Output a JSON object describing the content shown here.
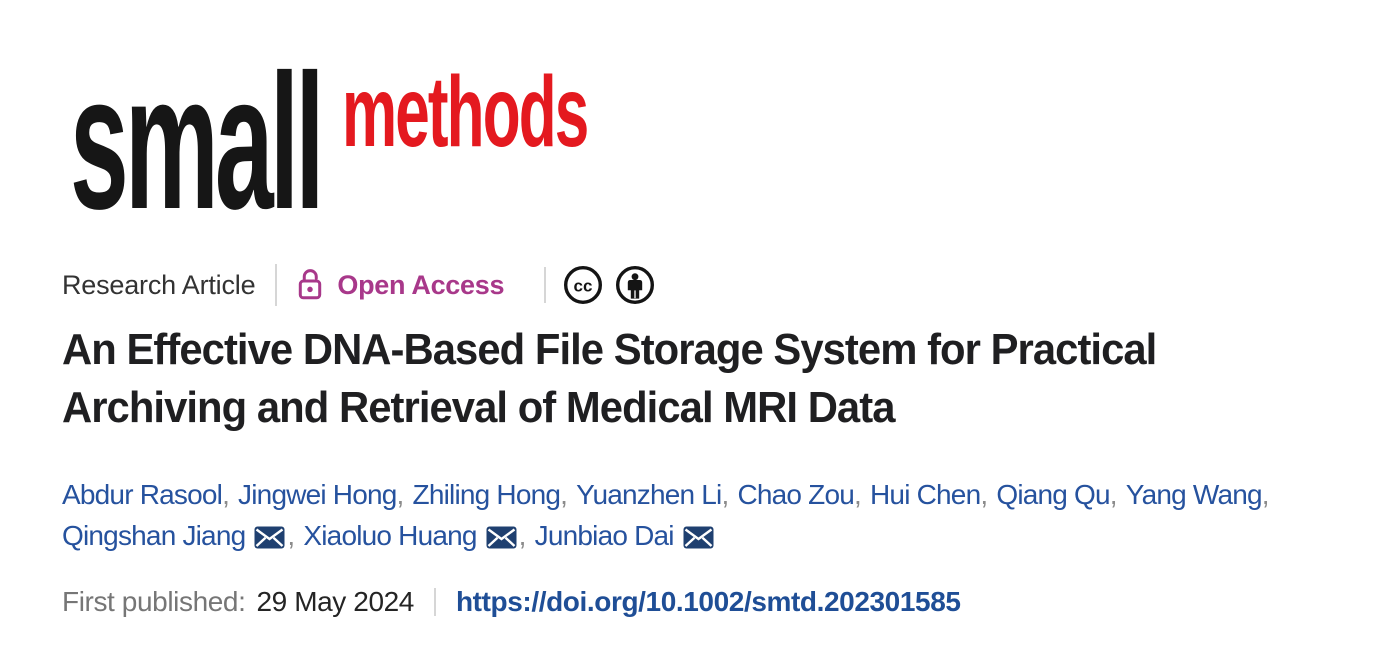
{
  "journal_logo": {
    "primary": "small",
    "secondary": "methods"
  },
  "meta": {
    "article_type": "Research Article",
    "open_access": "Open Access"
  },
  "icons": {
    "lock": "open-lock-icon",
    "cc": "creative-commons-icon",
    "by": "cc-attribution-icon",
    "envelope": "email-envelope-icon"
  },
  "title_lines": [
    "An Effective DNA-Based File Storage System for Practical",
    "Archiving and Retrieval of Medical MRI Data"
  ],
  "authors": {
    "line1": [
      {
        "name": "Abdur Rasool"
      },
      {
        "name": "Jingwei Hong"
      },
      {
        "name": "Zhiling Hong"
      },
      {
        "name": "Yuanzhen Li"
      },
      {
        "name": "Chao Zou"
      },
      {
        "name": "Hui Chen"
      },
      {
        "name": "Qiang Qu"
      },
      {
        "name": "Yang Wang"
      }
    ],
    "line1_trailing_separator": true,
    "line2": [
      {
        "name": "Qingshan Jiang",
        "envelope": true
      },
      {
        "name": "Xiaoluo Huang",
        "envelope": true
      },
      {
        "name": "Junbiao Dai",
        "envelope": true
      }
    ],
    "line2_trailing_separator": false,
    "separator": ","
  },
  "published": {
    "label": "First published:",
    "date": "29 May 2024",
    "doi": "https://doi.org/10.1002/smtd.202301585"
  },
  "colors": {
    "logo_black": "#161616",
    "logo_red": "#e4191f",
    "magenta": "#a8388a",
    "ink": "#1f1f21",
    "author_blue": "#26529e",
    "doi_blue": "#1f4e96",
    "envelope_navy": "#1f4070",
    "label_gray": "#767676",
    "separator_gray": "#8b8b8b",
    "divider_gray": "#d6d6d6"
  }
}
